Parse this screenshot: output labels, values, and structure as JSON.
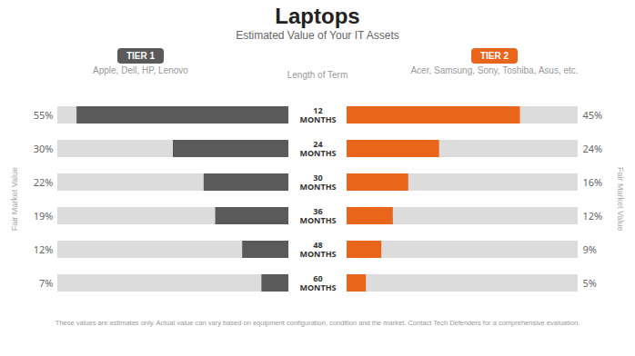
{
  "chart_data": {
    "type": "bar",
    "orientation": "horizontal",
    "title": "Laptops",
    "subtitle": "Estimated Value of Your IT Assets",
    "ylabel": "Fair Market Value",
    "y2label": "Fair Market Value",
    "categories": [
      "12\nMONTHS",
      "24\nMONTHS",
      "30\nMONTHS",
      "36\nMONTHS",
      "48\nMONTHS",
      "60\nMONTHS"
    ],
    "series": [
      {
        "name": "TIER 1",
        "color": "#5a5a5a",
        "values": [
          55,
          30,
          22,
          19,
          12,
          7
        ],
        "value_labels": [
          "55%",
          "30%",
          "22%",
          "19%",
          "12%",
          "7%"
        ]
      },
      {
        "name": "TIER 2",
        "color": "#e8651a",
        "values": [
          45,
          24,
          16,
          12,
          9,
          5
        ],
        "value_labels": [
          "45%",
          "24%",
          "16%",
          "12%",
          "9%",
          "5%"
        ]
      }
    ],
    "xlim": [
      0,
      60
    ],
    "data_labels": true,
    "tick_labels": false,
    "grid": false,
    "legend": "top",
    "annotations": [
      "Apple, Dell, HP, Lenovo",
      "Length of Term",
      "Acer, Samsung, Sony, Toshiba, Asus, etc.",
      "These values are estimates only. Actual value can vary based on equipment configuration, condition and the market. Contact Tech Defenders for a comprehensive evaluation."
    ]
  }
}
